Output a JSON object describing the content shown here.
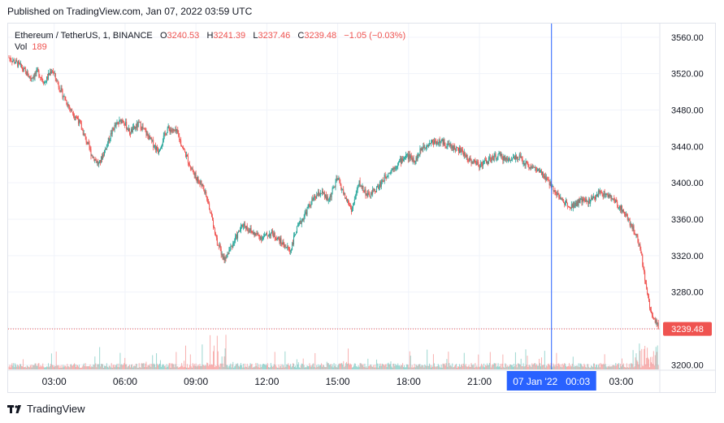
{
  "header": {
    "published_text": "Published on TradingView.com, Jan 07, 2022 03:59 UTC"
  },
  "legend": {
    "symbol": "Ethereum / TetherUS, 1, BINANCE",
    "o_label": "O",
    "o_value": "3240.53",
    "h_label": "H",
    "h_value": "3241.39",
    "l_label": "L",
    "l_value": "3237.46",
    "c_label": "C",
    "c_value": "3239.48",
    "change": "−1.05 (−0.03%)",
    "vol_label": "Vol",
    "vol_value": "189"
  },
  "footer": {
    "brand": "TradingView"
  },
  "colors": {
    "up": "#26a69a",
    "down": "#ef5350",
    "crosshair": "#2962ff",
    "grid": "#f0f3fa",
    "price_label_bg": "#ef5350",
    "time_label_bg": "#2962ff"
  },
  "crosshair_label": "07 Jan '22   00:03",
  "current_price_label": "3239.48",
  "chart_data": {
    "type": "candlestick",
    "symbol": "ETHUSDT",
    "interval": "1",
    "exchange": "BINANCE",
    "ylim": [
      3195,
      3575
    ],
    "y_ticks": [
      3200.0,
      3240.0,
      3280.0,
      3320.0,
      3360.0,
      3400.0,
      3440.0,
      3480.0,
      3520.0,
      3560.0
    ],
    "x_ticks": [
      "03:00",
      "06:00",
      "09:00",
      "12:00",
      "15:00",
      "18:00",
      "21:00",
      "00:03",
      "03:00"
    ],
    "x_tick_hours": [
      3,
      6,
      9,
      12,
      15,
      18,
      21,
      24.05,
      27
    ],
    "x_range_hours": [
      1.05,
      28.6
    ],
    "crosshair_hour": 24.05,
    "last_price": 3239.48,
    "price_path": [
      [
        1.05,
        3538
      ],
      [
        1.5,
        3530
      ],
      [
        2.0,
        3515
      ],
      [
        2.3,
        3522
      ],
      [
        2.6,
        3510
      ],
      [
        2.9,
        3525
      ],
      [
        3.3,
        3500
      ],
      [
        3.7,
        3480
      ],
      [
        4.0,
        3470
      ],
      [
        4.3,
        3450
      ],
      [
        4.6,
        3430
      ],
      [
        4.9,
        3420
      ],
      [
        5.2,
        3440
      ],
      [
        5.5,
        3460
      ],
      [
        5.9,
        3470
      ],
      [
        6.2,
        3455
      ],
      [
        6.6,
        3465
      ],
      [
        7.0,
        3450
      ],
      [
        7.4,
        3435
      ],
      [
        7.8,
        3460
      ],
      [
        8.2,
        3455
      ],
      [
        8.5,
        3435
      ],
      [
        8.9,
        3410
      ],
      [
        9.3,
        3395
      ],
      [
        9.6,
        3370
      ],
      [
        9.9,
        3335
      ],
      [
        10.2,
        3315
      ],
      [
        10.6,
        3335
      ],
      [
        11.0,
        3355
      ],
      [
        11.4,
        3345
      ],
      [
        11.8,
        3340
      ],
      [
        12.2,
        3345
      ],
      [
        12.6,
        3335
      ],
      [
        13.0,
        3325
      ],
      [
        13.2,
        3345
      ],
      [
        13.5,
        3360
      ],
      [
        13.9,
        3380
      ],
      [
        14.3,
        3390
      ],
      [
        14.6,
        3380
      ],
      [
        15.0,
        3405
      ],
      [
        15.3,
        3385
      ],
      [
        15.6,
        3370
      ],
      [
        15.9,
        3400
      ],
      [
        16.3,
        3385
      ],
      [
        16.7,
        3395
      ],
      [
        17.1,
        3410
      ],
      [
        17.5,
        3420
      ],
      [
        17.9,
        3430
      ],
      [
        18.3,
        3425
      ],
      [
        18.6,
        3440
      ],
      [
        19.0,
        3445
      ],
      [
        19.4,
        3445
      ],
      [
        19.8,
        3440
      ],
      [
        20.2,
        3435
      ],
      [
        20.6,
        3425
      ],
      [
        21.0,
        3420
      ],
      [
        21.4,
        3425
      ],
      [
        21.8,
        3430
      ],
      [
        22.2,
        3425
      ],
      [
        22.6,
        3430
      ],
      [
        23.0,
        3420
      ],
      [
        23.4,
        3415
      ],
      [
        23.8,
        3405
      ],
      [
        24.1,
        3395
      ],
      [
        24.5,
        3380
      ],
      [
        24.9,
        3375
      ],
      [
        25.3,
        3380
      ],
      [
        25.7,
        3380
      ],
      [
        26.1,
        3390
      ],
      [
        26.5,
        3385
      ],
      [
        26.9,
        3375
      ],
      [
        27.2,
        3365
      ],
      [
        27.5,
        3350
      ],
      [
        27.8,
        3330
      ],
      [
        28.0,
        3295
      ],
      [
        28.2,
        3265
      ],
      [
        28.4,
        3250
      ],
      [
        28.6,
        3239.48
      ]
    ]
  }
}
